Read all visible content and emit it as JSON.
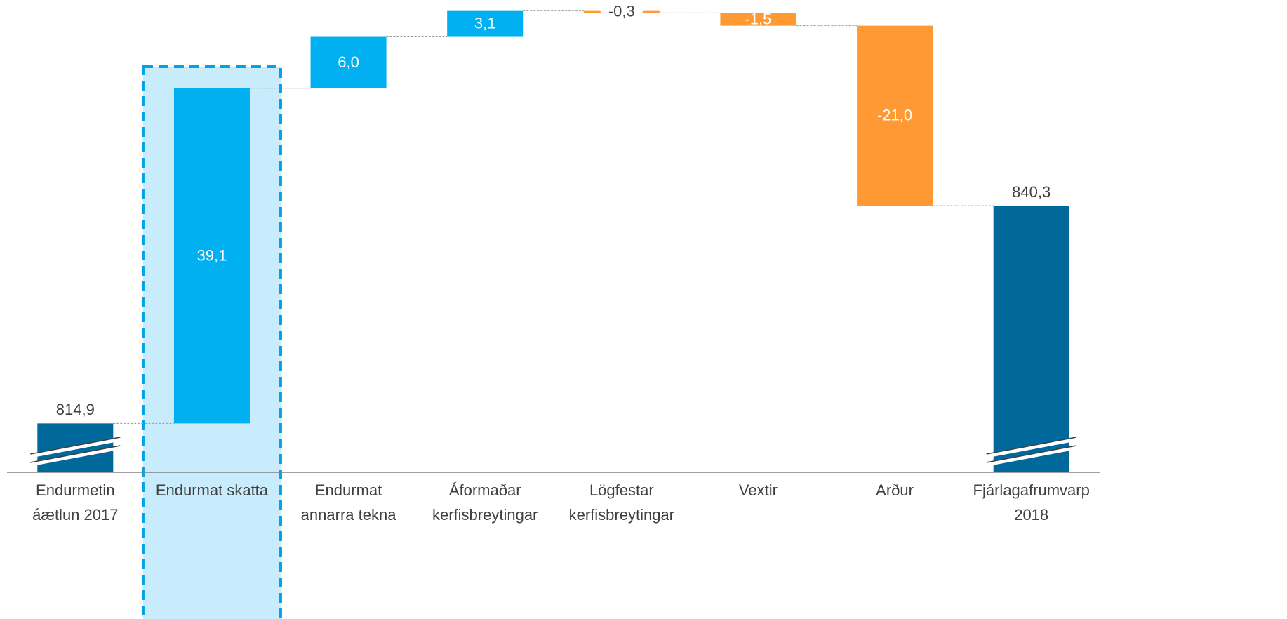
{
  "chart_data": {
    "type": "waterfall",
    "categories": [
      [
        "Endurmetin",
        "áætlun 2017"
      ],
      [
        "Endurmat skatta"
      ],
      [
        "Endurmat",
        "annarra tekna"
      ],
      [
        "Áformaðar",
        "kerfisbreytingar"
      ],
      [
        "Lögfestar",
        "kerfisbreytingar"
      ],
      [
        "Vextir"
      ],
      [
        "Arður"
      ],
      [
        "Fjárlagafrumvarp",
        "2018"
      ]
    ],
    "values": [
      814.9,
      39.1,
      6.0,
      3.1,
      -0.3,
      -1.5,
      -21.0,
      840.3
    ],
    "value_labels": [
      "814,9",
      "39,1",
      "6,0",
      "3,1",
      "-0,3",
      "-1,5",
      "-21,0",
      "840,3"
    ],
    "totals": [
      0,
      7
    ],
    "highlight": 1,
    "colors": {
      "total": "#00689a",
      "increase": "#00b0f0",
      "decrease": "#ff9933"
    },
    "ylim": [
      809.2,
      864.3
    ]
  }
}
